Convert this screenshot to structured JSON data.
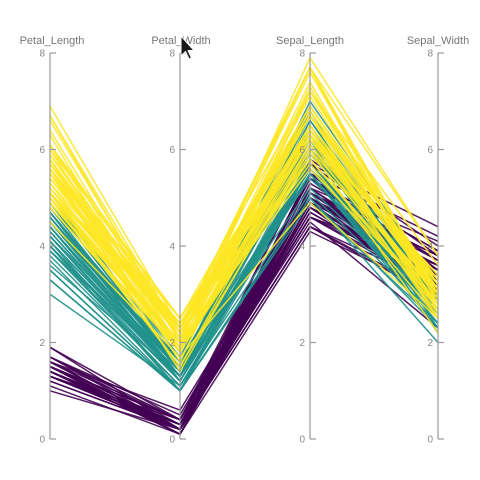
{
  "chart_data": {
    "type": "parallel_coordinates",
    "dimensions": [
      "Petal_Length",
      "Petal_Width",
      "Sepal_Length",
      "Sepal_Width"
    ],
    "axis_range": [
      0,
      8
    ],
    "ticks": [
      0,
      2,
      4,
      6,
      8
    ],
    "tick_labels": [
      "0",
      "2",
      "4",
      "6",
      "8"
    ],
    "legend": "none",
    "grid": false,
    "series": [
      {
        "color": "#440154",
        "lines": [
          [
            1.4,
            0.2,
            5.1,
            3.5
          ],
          [
            1.4,
            0.2,
            4.9,
            3.0
          ],
          [
            1.3,
            0.2,
            4.7,
            3.2
          ],
          [
            1.5,
            0.2,
            4.6,
            3.1
          ],
          [
            1.4,
            0.2,
            5.0,
            3.6
          ],
          [
            1.7,
            0.4,
            5.4,
            3.9
          ],
          [
            1.4,
            0.3,
            4.6,
            3.4
          ],
          [
            1.5,
            0.2,
            5.0,
            3.4
          ],
          [
            1.4,
            0.2,
            4.4,
            2.9
          ],
          [
            1.5,
            0.1,
            4.9,
            3.1
          ],
          [
            1.5,
            0.2,
            5.4,
            3.7
          ],
          [
            1.6,
            0.2,
            4.8,
            3.4
          ],
          [
            1.4,
            0.1,
            4.8,
            3.0
          ],
          [
            1.1,
            0.1,
            4.3,
            3.0
          ],
          [
            1.2,
            0.2,
            5.8,
            4.0
          ],
          [
            1.5,
            0.4,
            5.7,
            4.4
          ],
          [
            1.3,
            0.4,
            5.4,
            3.9
          ],
          [
            1.4,
            0.3,
            5.1,
            3.5
          ],
          [
            1.7,
            0.3,
            5.7,
            3.8
          ],
          [
            1.5,
            0.3,
            5.1,
            3.8
          ],
          [
            1.7,
            0.2,
            5.4,
            3.4
          ],
          [
            1.5,
            0.4,
            5.1,
            3.7
          ],
          [
            1.0,
            0.2,
            4.6,
            3.6
          ],
          [
            1.7,
            0.5,
            5.1,
            3.3
          ],
          [
            1.9,
            0.2,
            4.8,
            3.4
          ],
          [
            1.6,
            0.2,
            5.0,
            3.0
          ],
          [
            1.6,
            0.4,
            5.0,
            3.4
          ],
          [
            1.5,
            0.2,
            5.2,
            3.5
          ],
          [
            1.4,
            0.2,
            5.2,
            3.4
          ],
          [
            1.6,
            0.2,
            4.7,
            3.2
          ],
          [
            1.6,
            0.2,
            4.8,
            3.1
          ],
          [
            1.5,
            0.4,
            5.4,
            3.4
          ],
          [
            1.5,
            0.1,
            5.2,
            4.1
          ],
          [
            1.4,
            0.2,
            5.5,
            4.2
          ],
          [
            1.5,
            0.2,
            4.9,
            3.1
          ],
          [
            1.2,
            0.2,
            5.0,
            3.2
          ],
          [
            1.3,
            0.2,
            5.5,
            3.5
          ],
          [
            1.4,
            0.1,
            4.9,
            3.6
          ],
          [
            1.3,
            0.2,
            4.4,
            3.0
          ],
          [
            1.5,
            0.2,
            5.1,
            3.4
          ],
          [
            1.3,
            0.3,
            5.0,
            3.5
          ],
          [
            1.3,
            0.3,
            4.5,
            2.3
          ],
          [
            1.3,
            0.2,
            4.4,
            3.2
          ],
          [
            1.6,
            0.6,
            5.0,
            3.5
          ],
          [
            1.9,
            0.4,
            5.1,
            3.8
          ],
          [
            1.4,
            0.3,
            4.8,
            3.0
          ],
          [
            1.6,
            0.2,
            5.1,
            3.8
          ],
          [
            1.4,
            0.2,
            4.6,
            3.2
          ],
          [
            1.5,
            0.2,
            5.3,
            3.7
          ],
          [
            1.4,
            0.2,
            5.0,
            3.3
          ]
        ]
      },
      {
        "color": "#21918c",
        "lines": [
          [
            4.7,
            1.4,
            7.0,
            3.2
          ],
          [
            4.5,
            1.5,
            6.4,
            3.2
          ],
          [
            4.9,
            1.5,
            6.9,
            3.1
          ],
          [
            4.0,
            1.3,
            5.5,
            2.3
          ],
          [
            4.6,
            1.5,
            6.5,
            2.8
          ],
          [
            4.5,
            1.3,
            5.7,
            2.8
          ],
          [
            4.7,
            1.6,
            6.3,
            3.3
          ],
          [
            3.3,
            1.0,
            4.9,
            2.4
          ],
          [
            4.6,
            1.3,
            6.6,
            2.9
          ],
          [
            3.9,
            1.4,
            5.2,
            2.7
          ],
          [
            3.5,
            1.0,
            5.0,
            2.0
          ],
          [
            4.2,
            1.5,
            5.9,
            3.0
          ],
          [
            4.0,
            1.0,
            6.0,
            2.2
          ],
          [
            4.7,
            1.4,
            6.1,
            2.9
          ],
          [
            3.6,
            1.3,
            5.6,
            2.9
          ],
          [
            4.4,
            1.4,
            6.7,
            3.1
          ],
          [
            4.5,
            1.5,
            5.6,
            3.0
          ],
          [
            4.1,
            1.0,
            5.8,
            2.7
          ],
          [
            4.5,
            1.5,
            6.2,
            2.2
          ],
          [
            3.9,
            1.1,
            5.6,
            2.5
          ],
          [
            4.8,
            1.8,
            5.9,
            3.2
          ],
          [
            4.0,
            1.3,
            6.1,
            2.8
          ],
          [
            4.9,
            1.5,
            6.3,
            2.5
          ],
          [
            4.7,
            1.2,
            6.1,
            2.8
          ],
          [
            4.3,
            1.3,
            6.4,
            2.9
          ],
          [
            4.4,
            1.4,
            6.6,
            3.0
          ],
          [
            4.8,
            1.4,
            6.8,
            2.8
          ],
          [
            5.0,
            1.7,
            6.7,
            3.0
          ],
          [
            4.5,
            1.5,
            6.0,
            2.9
          ],
          [
            3.5,
            1.0,
            5.7,
            2.6
          ],
          [
            3.8,
            1.1,
            5.5,
            2.4
          ],
          [
            3.7,
            1.0,
            5.5,
            2.4
          ],
          [
            3.9,
            1.2,
            5.8,
            2.7
          ],
          [
            5.1,
            1.6,
            6.0,
            2.7
          ],
          [
            4.5,
            1.5,
            5.4,
            3.0
          ],
          [
            4.5,
            1.6,
            6.0,
            3.4
          ],
          [
            4.7,
            1.5,
            6.7,
            3.1
          ],
          [
            4.4,
            1.3,
            6.3,
            2.3
          ],
          [
            4.1,
            1.3,
            5.6,
            3.0
          ],
          [
            4.0,
            1.3,
            5.5,
            2.5
          ],
          [
            4.4,
            1.2,
            5.5,
            2.6
          ],
          [
            4.6,
            1.4,
            6.1,
            3.0
          ],
          [
            4.0,
            1.2,
            5.8,
            2.6
          ],
          [
            3.3,
            1.0,
            5.0,
            2.3
          ],
          [
            4.2,
            1.3,
            5.6,
            2.7
          ],
          [
            4.2,
            1.2,
            5.7,
            3.0
          ],
          [
            4.2,
            1.3,
            5.7,
            2.9
          ],
          [
            4.3,
            1.3,
            6.2,
            2.9
          ],
          [
            3.0,
            1.1,
            5.1,
            2.5
          ],
          [
            4.1,
            1.3,
            5.7,
            2.8
          ]
        ]
      },
      {
        "color": "#fde725",
        "lines": [
          [
            6.0,
            2.5,
            6.3,
            3.3
          ],
          [
            5.1,
            1.9,
            5.8,
            2.7
          ],
          [
            5.9,
            2.1,
            7.1,
            3.0
          ],
          [
            5.6,
            1.8,
            6.3,
            2.9
          ],
          [
            5.8,
            2.2,
            6.5,
            3.0
          ],
          [
            6.6,
            2.1,
            7.6,
            3.0
          ],
          [
            4.5,
            1.7,
            4.9,
            2.5
          ],
          [
            6.3,
            1.8,
            7.3,
            2.9
          ],
          [
            5.8,
            1.8,
            6.7,
            2.5
          ],
          [
            6.1,
            2.5,
            7.2,
            3.6
          ],
          [
            5.1,
            2.0,
            6.5,
            3.2
          ],
          [
            5.3,
            1.9,
            6.4,
            2.7
          ],
          [
            5.5,
            2.1,
            6.8,
            3.0
          ],
          [
            5.0,
            2.0,
            5.7,
            2.5
          ],
          [
            5.1,
            2.4,
            5.8,
            2.8
          ],
          [
            5.3,
            2.3,
            6.4,
            3.2
          ],
          [
            5.5,
            1.8,
            6.5,
            3.0
          ],
          [
            6.7,
            2.2,
            7.7,
            3.8
          ],
          [
            6.9,
            2.3,
            7.7,
            2.6
          ],
          [
            5.0,
            1.5,
            6.0,
            2.2
          ],
          [
            5.7,
            2.3,
            6.9,
            3.2
          ],
          [
            4.9,
            2.0,
            5.6,
            2.8
          ],
          [
            6.7,
            2.0,
            7.7,
            2.8
          ],
          [
            4.9,
            1.8,
            6.3,
            2.7
          ],
          [
            5.7,
            2.1,
            6.7,
            3.3
          ],
          [
            6.0,
            1.8,
            7.2,
            3.2
          ],
          [
            4.8,
            1.8,
            6.2,
            2.8
          ],
          [
            4.9,
            1.8,
            6.1,
            3.0
          ],
          [
            5.6,
            2.1,
            6.4,
            2.8
          ],
          [
            5.8,
            1.6,
            7.2,
            3.0
          ],
          [
            6.1,
            1.9,
            7.4,
            2.8
          ],
          [
            6.4,
            2.0,
            7.9,
            3.8
          ],
          [
            5.6,
            2.2,
            6.4,
            2.8
          ],
          [
            5.1,
            1.5,
            6.3,
            2.8
          ],
          [
            5.6,
            1.4,
            6.1,
            2.6
          ],
          [
            6.1,
            2.3,
            7.7,
            3.0
          ],
          [
            5.6,
            2.4,
            6.3,
            3.4
          ],
          [
            5.5,
            1.8,
            6.4,
            3.1
          ],
          [
            4.8,
            1.8,
            6.0,
            3.0
          ],
          [
            5.4,
            2.1,
            6.9,
            3.1
          ],
          [
            5.6,
            2.4,
            6.7,
            3.1
          ],
          [
            5.1,
            2.3,
            6.9,
            3.1
          ],
          [
            5.1,
            1.9,
            5.8,
            2.7
          ],
          [
            5.9,
            2.3,
            6.8,
            3.2
          ],
          [
            5.7,
            2.5,
            6.7,
            3.3
          ],
          [
            5.2,
            2.3,
            6.7,
            3.0
          ],
          [
            5.0,
            1.9,
            6.3,
            2.5
          ],
          [
            5.2,
            2.0,
            6.5,
            3.0
          ],
          [
            5.4,
            2.3,
            6.2,
            3.4
          ],
          [
            5.1,
            1.8,
            5.9,
            3.0
          ]
        ]
      }
    ]
  },
  "cursor": {
    "icon": "mouse-pointer-icon",
    "fill": "#1a1a1a",
    "stroke": "#ffffff"
  }
}
